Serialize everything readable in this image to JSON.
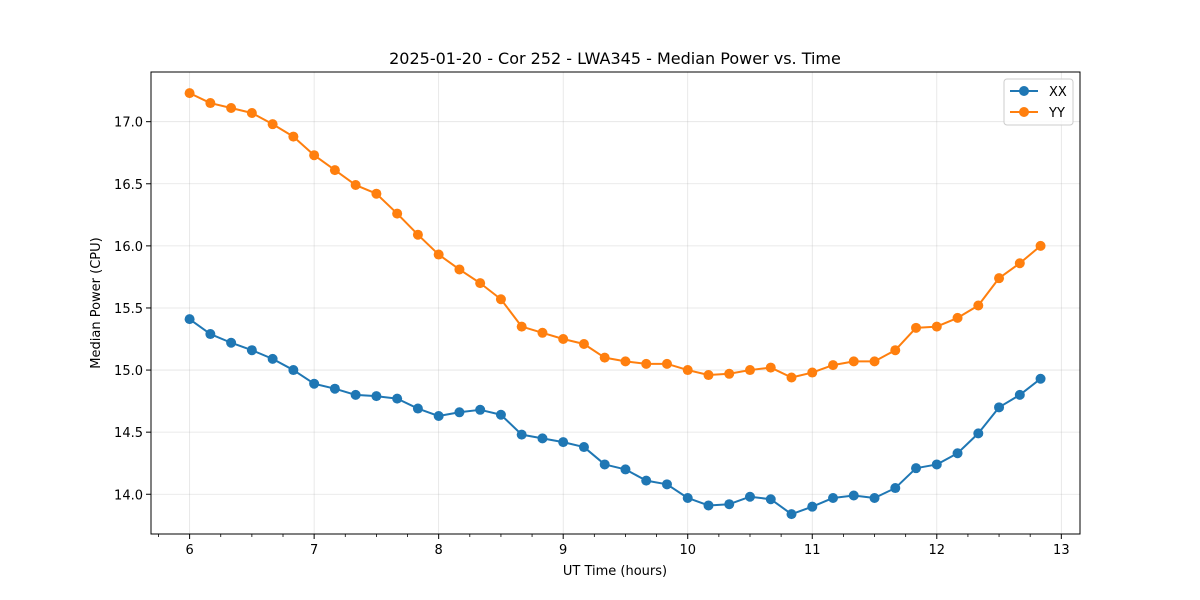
{
  "chart_data": {
    "type": "line",
    "title": "2025-01-20 - Cor 252 - LWA345 - Median Power vs. Time",
    "xlabel": "UT Time (hours)",
    "ylabel": "Median Power (CPU)",
    "xlim": [
      5.69,
      13.15
    ],
    "ylim": [
      13.68,
      17.4
    ],
    "xticks": [
      6,
      7,
      8,
      9,
      10,
      11,
      12,
      13
    ],
    "yticks": [
      14.0,
      14.5,
      15.0,
      15.5,
      16.0,
      16.5,
      17.0
    ],
    "ytick_labels": [
      "14.0",
      "14.5",
      "15.0",
      "15.5",
      "16.0",
      "16.5",
      "17.0"
    ],
    "grid": true,
    "legend_position": "top-right",
    "x": [
      6.0,
      6.1667,
      6.3333,
      6.5,
      6.6667,
      6.8333,
      7.0,
      7.1667,
      7.3333,
      7.5,
      7.6667,
      7.8333,
      8.0,
      8.1667,
      8.3333,
      8.5,
      8.6667,
      8.8333,
      9.0,
      9.1667,
      9.3333,
      9.5,
      9.6667,
      9.8333,
      10.0,
      10.1667,
      10.3333,
      10.5,
      10.6667,
      10.8333,
      11.0,
      11.1667,
      11.3333,
      11.5,
      11.6667,
      11.8333,
      12.0,
      12.1667,
      12.3333,
      12.5,
      12.6667,
      12.8333
    ],
    "series": [
      {
        "name": "XX",
        "color": "#1f77b4",
        "values": [
          15.41,
          15.29,
          15.22,
          15.16,
          15.09,
          15.0,
          14.89,
          14.85,
          14.8,
          14.79,
          14.77,
          14.69,
          14.63,
          14.66,
          14.68,
          14.64,
          14.48,
          14.45,
          14.42,
          14.38,
          14.24,
          14.2,
          14.11,
          14.08,
          13.97,
          13.91,
          13.92,
          13.98,
          13.96,
          13.84,
          13.9,
          13.97,
          13.99,
          13.97,
          14.05,
          14.21,
          14.24,
          14.33,
          14.49,
          14.7,
          14.8,
          14.93
        ]
      },
      {
        "name": "YY",
        "color": "#ff7f0e",
        "values": [
          17.23,
          17.15,
          17.11,
          17.07,
          16.98,
          16.88,
          16.73,
          16.61,
          16.49,
          16.42,
          16.26,
          16.09,
          15.93,
          15.81,
          15.7,
          15.57,
          15.35,
          15.3,
          15.25,
          15.21,
          15.1,
          15.07,
          15.05,
          15.05,
          15.0,
          14.96,
          14.97,
          15.0,
          15.02,
          14.94,
          14.98,
          15.04,
          15.07,
          15.07,
          15.16,
          15.34,
          15.35,
          15.42,
          15.52,
          15.74,
          15.86,
          16.0
        ]
      }
    ]
  }
}
